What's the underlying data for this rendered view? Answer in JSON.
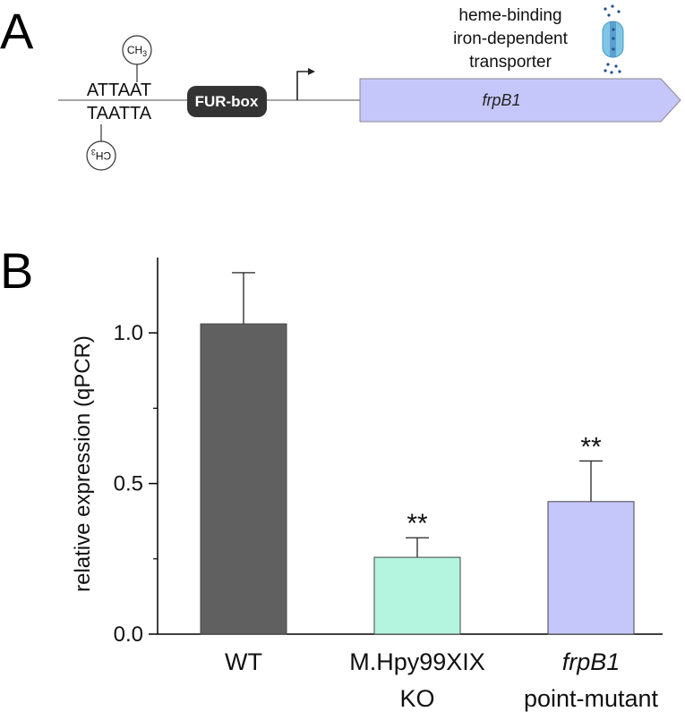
{
  "panel_a": {
    "letter": "A",
    "seq_top": "ATTAAT",
    "seq_bottom": "TAATTA",
    "methyl_label": "CH",
    "methyl_subscript": "3",
    "fur_box_label": "FUR-box",
    "gene_label": "frpB1",
    "transporter_caption": [
      "heme-binding",
      "iron-dependent",
      "transporter"
    ],
    "gene_color": "#c5c7fb",
    "fur_box_color": "#333333",
    "transporter_color": "#7fc6e6",
    "dot_color": "#1f4f8f"
  },
  "panel_b": {
    "letter": "B"
  },
  "chart_data": {
    "type": "bar",
    "categories": [
      {
        "lines": [
          "WT"
        ],
        "italic_first_line": false
      },
      {
        "lines": [
          "M.Hpy99XIX",
          "KO"
        ],
        "italic_first_line": false
      },
      {
        "lines": [
          "frpB1",
          "point-mutant"
        ],
        "italic_first_line": true
      }
    ],
    "values": [
      1.03,
      0.255,
      0.44
    ],
    "error_upper": [
      0.17,
      0.065,
      0.135
    ],
    "significance": [
      "",
      "**",
      "**"
    ],
    "colors": [
      "#606060",
      "#b3f5df",
      "#c5c7fb"
    ],
    "ylabel": "relative expression (qPCR)",
    "ylim": [
      0,
      1.25
    ],
    "yticks_major": [
      "0.0",
      "0.5",
      "1.0"
    ],
    "yticks_major_values": [
      0,
      0.5,
      1.0
    ],
    "yticks_minor_values": [
      0.25,
      0.75
    ],
    "grid": false,
    "legend": "none"
  }
}
